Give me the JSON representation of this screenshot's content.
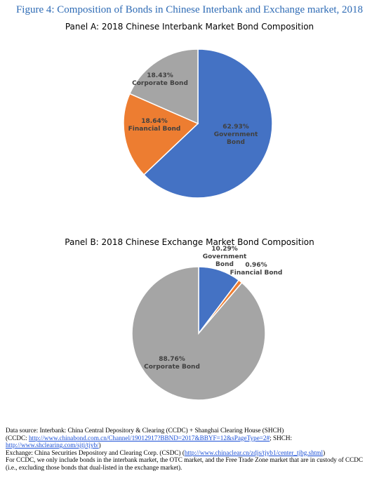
{
  "figure_title": "Figure 4: Composition of Bonds in Chinese Interbank and Exchange market, 2018",
  "colors": {
    "government": "#4472c4",
    "financial": "#ed7d31",
    "corporate": "#a5a5a5"
  },
  "chart_data": [
    {
      "type": "pie",
      "title": "Panel A: 2018 Chinese Interbank Market Bond Composition",
      "categories": [
        "Government Bond",
        "Financial Bond",
        "Corporate Bond"
      ],
      "values": [
        62.93,
        18.64,
        18.43
      ],
      "labels": [
        [
          "62.93%",
          "Government",
          "Bond"
        ],
        [
          "18.64%",
          "Financial Bond"
        ],
        [
          "18.43%",
          "Corporate Bond"
        ]
      ]
    },
    {
      "type": "pie",
      "title": "Panel B: 2018 Chinese Exchange Market Bond Composition",
      "categories": [
        "Government Bond",
        "Financial Bond",
        "Corporate Bond"
      ],
      "values": [
        10.29,
        0.96,
        88.76
      ],
      "labels": [
        [
          "10.29%",
          "Government",
          "Bond"
        ],
        [
          "0.96%",
          "Financial Bond"
        ],
        [
          "88.76%",
          "Corporate Bond"
        ]
      ]
    }
  ],
  "source": {
    "line1": "Data source: Interbank: China Central Depository & Clearing (CCDC) + Shanghai Clearing House (SHCH)",
    "line2_prefix": "(CCDC: ",
    "line2_link": "http://www.chinabond.com.cn/Channel/19012917?BBND=2017&BBYF=12&sPageType=2#",
    "line2_suffix": "; SHCH:",
    "line3_link": "http://www.shclearing.com/sjtj/tjyb/",
    "line3_suffix": ")",
    "line4_prefix": "Exchange: China Securities Depository and Clearing Corp. (CSDC) (",
    "line4_link": "http://www.chinaclear.cn/zdjs/tjyb1/center_tjbg.shtml",
    "line4_suffix": ")",
    "line5": "For CCDC, we only include bonds in the interbank market, the OTC market, and the Free Trade Zone market that are in custody of CCDC",
    "line6": "(i.e., excluding those bonds that dual-listed in the exchange market)."
  }
}
